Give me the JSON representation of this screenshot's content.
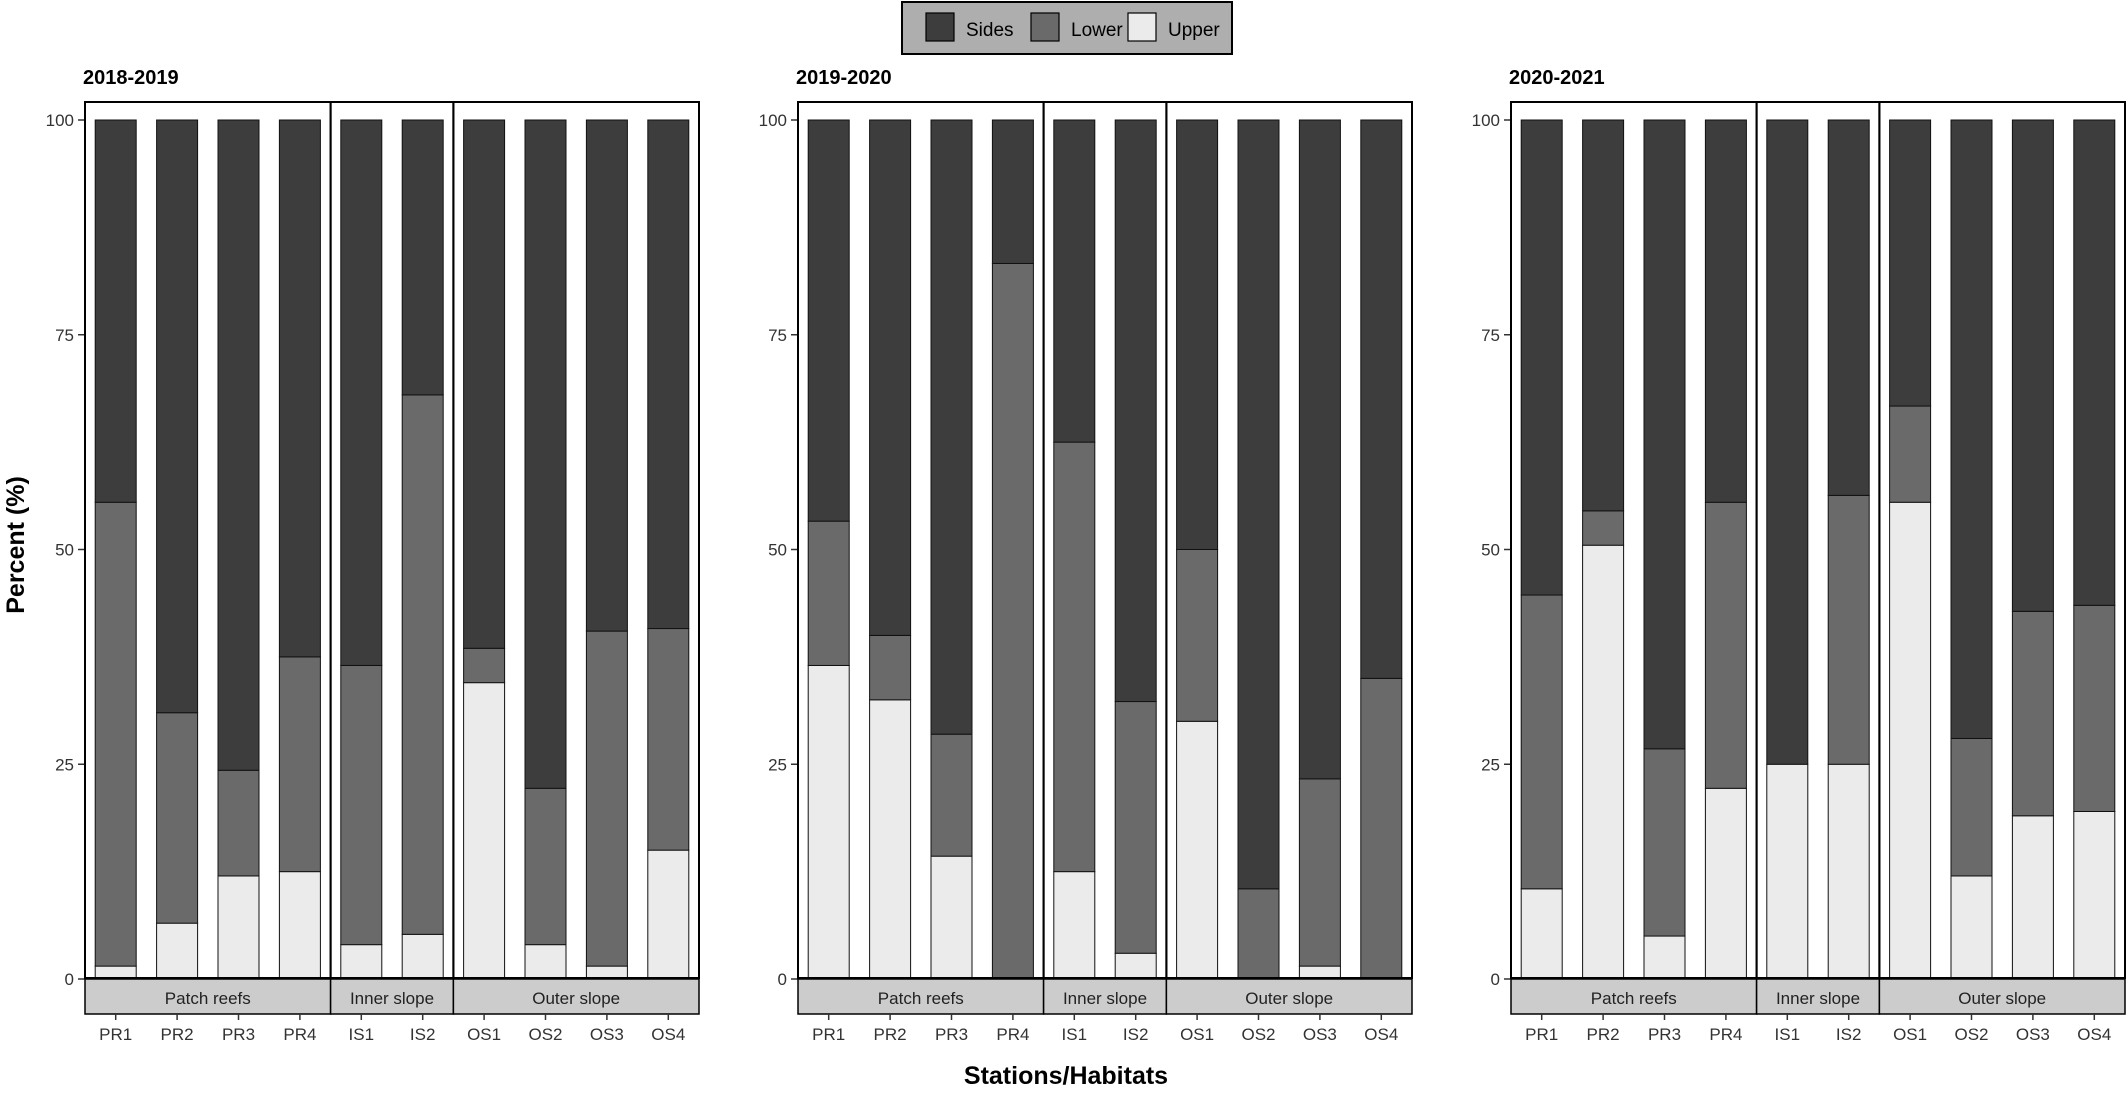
{
  "figure": {
    "ylabel": "Percent (%)",
    "xlabel": "Stations/Habitats",
    "legend": {
      "position": "top-center",
      "items": [
        {
          "label": "Sides",
          "color": "#3d3d3d"
        },
        {
          "label": "Lower",
          "color": "#6a6a6a"
        },
        {
          "label": "Upper",
          "color": "#ebebeb"
        }
      ]
    },
    "colors": {
      "sides": "#3d3d3d",
      "lower": "#6a6a6a",
      "upper": "#ebebeb",
      "strip": "#cccccc",
      "legend_bg": "#aeaeae"
    }
  },
  "chart_data": [
    {
      "type": "bar",
      "stacked": true,
      "title": "2018-2019",
      "ylim": [
        0,
        100
      ],
      "yticks": [
        0,
        25,
        50,
        75,
        100
      ],
      "categories": [
        "PR1",
        "PR2",
        "PR3",
        "PR4",
        "IS1",
        "IS2",
        "OS1",
        "OS2",
        "OS3",
        "OS4"
      ],
      "groups": [
        {
          "label": "Patch reefs",
          "stations": [
            "PR1",
            "PR2",
            "PR3",
            "PR4"
          ]
        },
        {
          "label": "Inner slope",
          "stations": [
            "IS1",
            "IS2"
          ]
        },
        {
          "label": "Outer slope",
          "stations": [
            "OS1",
            "OS2",
            "OS3",
            "OS4"
          ]
        }
      ],
      "series": [
        {
          "name": "Upper",
          "values": [
            1.5,
            6.5,
            12,
            12.5,
            4,
            5.2,
            34.5,
            4,
            1.5,
            15
          ]
        },
        {
          "name": "Lower",
          "values": [
            54,
            24.5,
            12.3,
            25,
            32.5,
            62.8,
            4,
            18.2,
            39,
            25.8
          ]
        },
        {
          "name": "Sides",
          "values": [
            44.5,
            69,
            75.7,
            62.5,
            63.5,
            32,
            61.5,
            77.8,
            59.5,
            59.2
          ]
        }
      ]
    },
    {
      "type": "bar",
      "stacked": true,
      "title": "2019-2020",
      "ylim": [
        0,
        100
      ],
      "yticks": [
        0,
        25,
        50,
        75,
        100
      ],
      "categories": [
        "PR1",
        "PR2",
        "PR3",
        "PR4",
        "IS1",
        "IS2",
        "OS1",
        "OS2",
        "OS3",
        "OS4"
      ],
      "groups": [
        {
          "label": "Patch reefs",
          "stations": [
            "PR1",
            "PR2",
            "PR3",
            "PR4"
          ]
        },
        {
          "label": "Inner slope",
          "stations": [
            "IS1",
            "IS2"
          ]
        },
        {
          "label": "Outer slope",
          "stations": [
            "OS1",
            "OS2",
            "OS3",
            "OS4"
          ]
        }
      ],
      "series": [
        {
          "name": "Upper",
          "values": [
            36.5,
            32.5,
            14.3,
            0,
            12.5,
            3,
            30,
            0,
            1.5,
            0
          ]
        },
        {
          "name": "Lower",
          "values": [
            16.8,
            7.5,
            14.2,
            83.3,
            50,
            29.3,
            20,
            10.5,
            21.8,
            35
          ]
        },
        {
          "name": "Sides",
          "values": [
            46.7,
            60,
            71.5,
            16.7,
            37.5,
            67.7,
            50,
            89.5,
            76.7,
            65
          ]
        }
      ]
    },
    {
      "type": "bar",
      "stacked": true,
      "title": "2020-2021",
      "ylim": [
        0,
        100
      ],
      "yticks": [
        0,
        25,
        50,
        75,
        100
      ],
      "categories": [
        "PR1",
        "PR2",
        "PR3",
        "PR4",
        "IS1",
        "IS2",
        "OS1",
        "OS2",
        "OS3",
        "OS4"
      ],
      "groups": [
        {
          "label": "Patch reefs",
          "stations": [
            "PR1",
            "PR2",
            "PR3",
            "PR4"
          ]
        },
        {
          "label": "Inner slope",
          "stations": [
            "IS1",
            "IS2"
          ]
        },
        {
          "label": "Outer slope",
          "stations": [
            "OS1",
            "OS2",
            "OS3",
            "OS4"
          ]
        }
      ],
      "series": [
        {
          "name": "Upper",
          "values": [
            10.5,
            50.5,
            5,
            22.2,
            25,
            25,
            55.5,
            12,
            19,
            19.5
          ]
        },
        {
          "name": "Lower",
          "values": [
            34.2,
            4,
            21.8,
            33.3,
            0,
            31.3,
            11.2,
            16,
            23.8,
            24
          ]
        },
        {
          "name": "Sides",
          "values": [
            55.3,
            45.5,
            73.2,
            44.5,
            75,
            43.7,
            33.3,
            72,
            57.2,
            56.5
          ]
        }
      ]
    }
  ]
}
